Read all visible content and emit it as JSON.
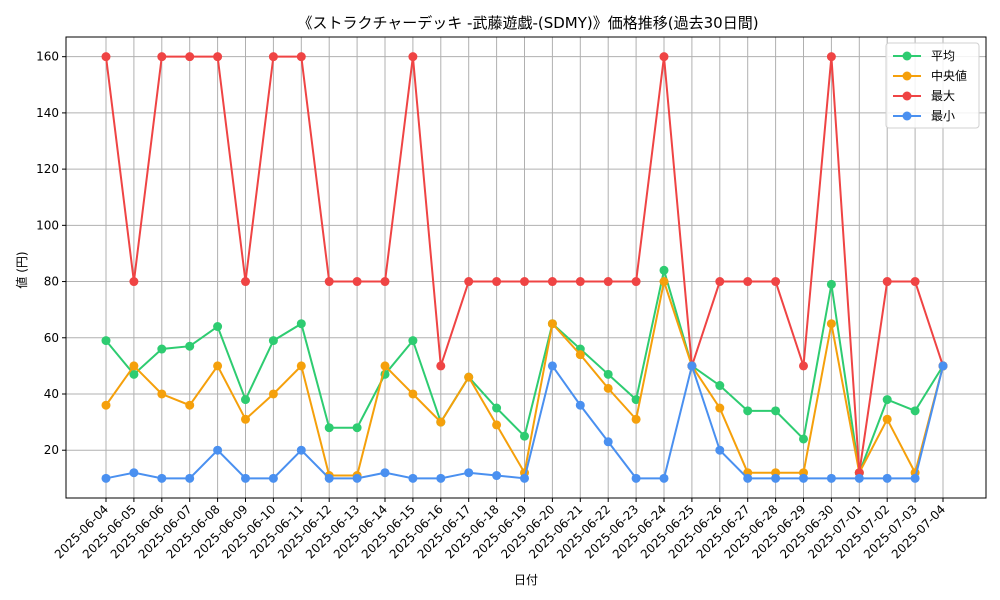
{
  "chart_data": {
    "type": "line",
    "title": "《ストラクチャーデッキ -武藤遊戯-(SDMY)》価格推移(過去30日間)",
    "xlabel": "日付",
    "ylabel": "値 (円)",
    "ylim": [
      3,
      167
    ],
    "yticks": [
      20,
      40,
      60,
      80,
      100,
      120,
      140,
      160
    ],
    "grid": true,
    "legend_position": "top-right",
    "categories": [
      "2025-06-04",
      "2025-06-05",
      "2025-06-06",
      "2025-06-07",
      "2025-06-08",
      "2025-06-09",
      "2025-06-10",
      "2025-06-11",
      "2025-06-12",
      "2025-06-13",
      "2025-06-14",
      "2025-06-15",
      "2025-06-16",
      "2025-06-17",
      "2025-06-18",
      "2025-06-19",
      "2025-06-20",
      "2025-06-21",
      "2025-06-22",
      "2025-06-23",
      "2025-06-24",
      "2025-06-25",
      "2025-06-26",
      "2025-06-27",
      "2025-06-28",
      "2025-06-29",
      "2025-06-30",
      "2025-07-01",
      "2025-07-02",
      "2025-07-03",
      "2025-07-04"
    ],
    "series": [
      {
        "name": "平均",
        "color": "#2ecc71",
        "values": [
          59,
          47,
          56,
          57,
          64,
          38,
          59,
          65,
          28,
          28,
          47,
          59,
          30,
          46,
          35,
          25,
          65,
          56,
          47,
          38,
          84,
          50,
          43,
          34,
          34,
          24,
          79,
          12,
          38,
          34,
          50
        ]
      },
      {
        "name": "中央値",
        "color": "#f5a00b",
        "values": [
          36,
          50,
          40,
          36,
          50,
          31,
          40,
          50,
          11,
          11,
          50,
          40,
          30,
          46,
          29,
          12,
          65,
          54,
          42,
          31,
          80,
          50,
          35,
          12,
          12,
          12,
          65,
          12,
          31,
          12,
          50
        ]
      },
      {
        "name": "最大",
        "color": "#ef4444",
        "values": [
          160,
          80,
          160,
          160,
          160,
          80,
          160,
          160,
          80,
          80,
          80,
          160,
          50,
          80,
          80,
          80,
          80,
          80,
          80,
          80,
          160,
          50,
          80,
          80,
          80,
          50,
          160,
          12,
          80,
          80,
          50
        ]
      },
      {
        "name": "最小",
        "color": "#4a90f0",
        "values": [
          10,
          12,
          10,
          10,
          20,
          10,
          10,
          20,
          10,
          10,
          12,
          10,
          10,
          12,
          11,
          10,
          50,
          36,
          23,
          10,
          10,
          50,
          20,
          10,
          10,
          10,
          10,
          10,
          10,
          10,
          50
        ]
      }
    ]
  }
}
